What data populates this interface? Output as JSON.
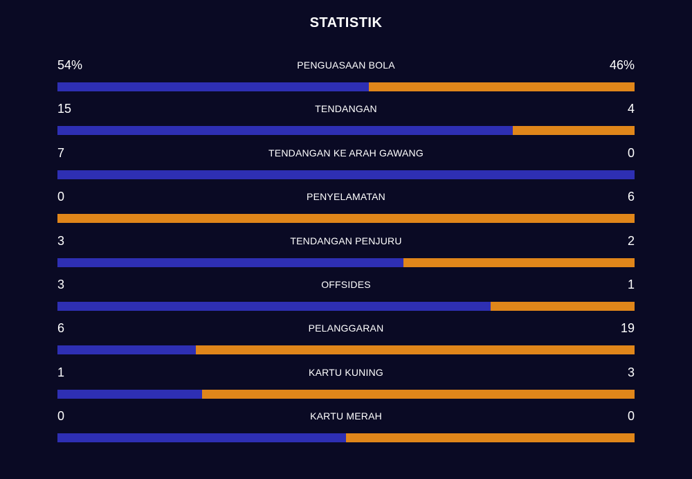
{
  "header": {
    "title": "STATISTIK"
  },
  "colors": {
    "background": "#0a0a24",
    "home": "#2e2fb3",
    "away": "#e0861a"
  },
  "stats": [
    {
      "label": "PENGUASAAN BOLA",
      "left": "54%",
      "right": "46%",
      "left_share": 0.54
    },
    {
      "label": "TENDANGAN",
      "left": "15",
      "right": "4",
      "left_share": 0.789
    },
    {
      "label": "TENDANGAN KE ARAH GAWANG",
      "left": "7",
      "right": "0",
      "left_share": 1.0
    },
    {
      "label": "PENYELAMATAN",
      "left": "0",
      "right": "6",
      "left_share": 0.0
    },
    {
      "label": "TENDANGAN PENJURU",
      "left": "3",
      "right": "2",
      "left_share": 0.6
    },
    {
      "label": "OFFSIDES",
      "left": "3",
      "right": "1",
      "left_share": 0.75
    },
    {
      "label": "PELANGGARAN",
      "left": "6",
      "right": "19",
      "left_share": 0.24
    },
    {
      "label": "KARTU KUNING",
      "left": "1",
      "right": "3",
      "left_share": 0.25
    },
    {
      "label": "KARTU MERAH",
      "left": "0",
      "right": "0",
      "left_share": 0.5
    }
  ]
}
